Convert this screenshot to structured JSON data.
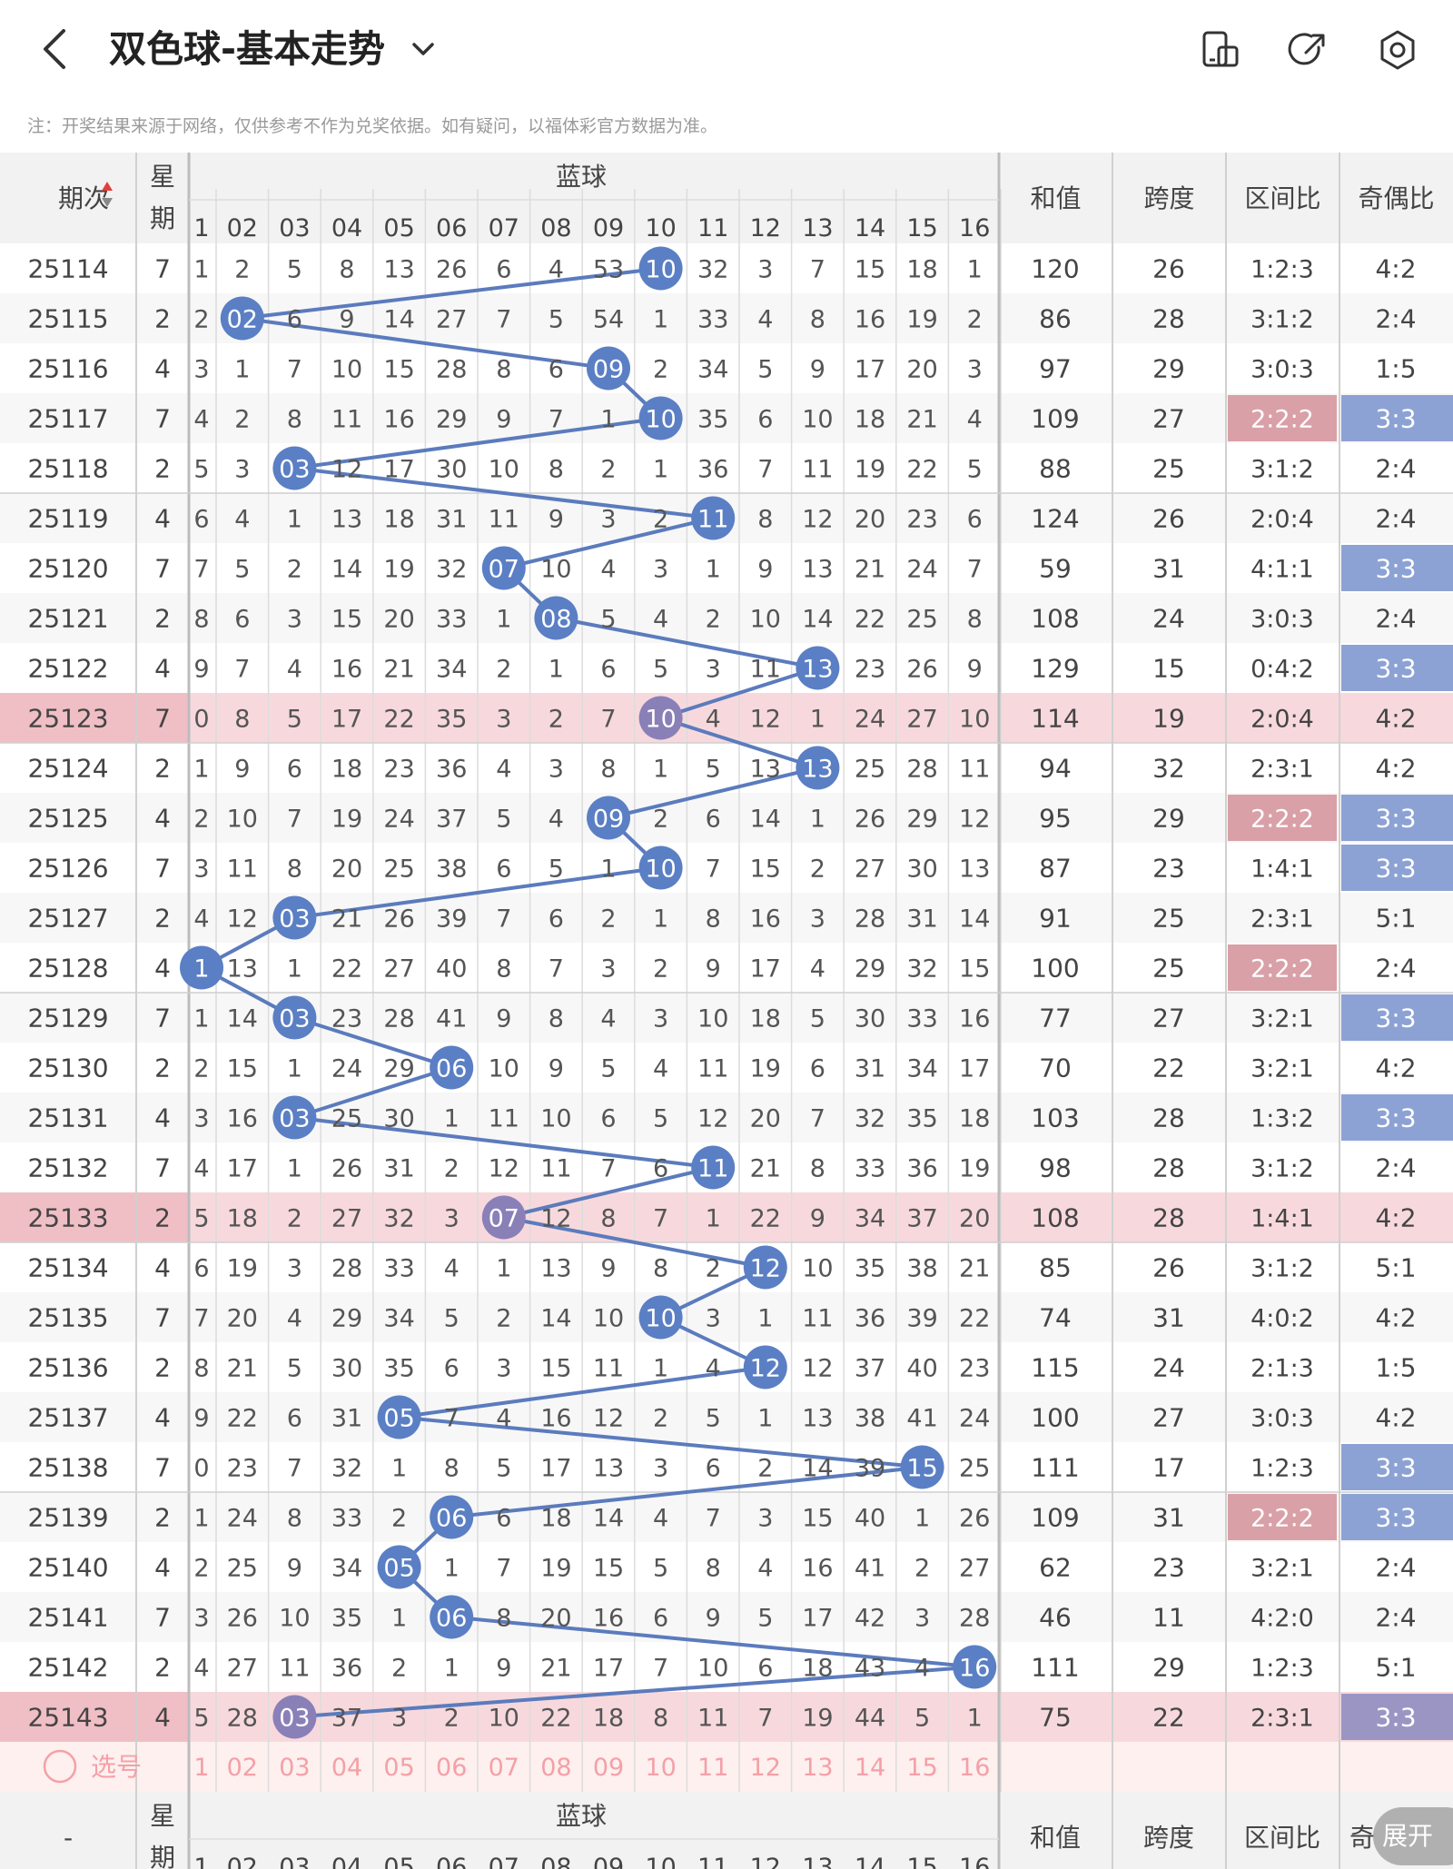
{
  "header": {
    "title": "双色球-基本走势"
  },
  "icons": {
    "back": "back-arrow-icon",
    "dropdown": "chevron-down-icon",
    "device": "phone-rotate-icon",
    "share": "share-icon",
    "settings": "settings-icon"
  },
  "notice": "注：开奖结果来源于网络，仅供参考不作为兑奖依据。如有疑问，以福体彩官方数据为准。",
  "table": {
    "col_period": "期次",
    "col_week": "星期",
    "col_blue": "蓝球",
    "col_sum": "和值",
    "col_span": "跨度",
    "col_zone": "区间比",
    "col_parity": "奇偶比",
    "blue_numbers": [
      "1",
      "02",
      "03",
      "04",
      "05",
      "06",
      "07",
      "08",
      "09",
      "10",
      "11",
      "12",
      "13",
      "14",
      "15",
      "16"
    ],
    "rows": [
      {
        "period": "25114",
        "week": "7",
        "blue": 10,
        "cells": [
          "1",
          "2",
          "5",
          "8",
          "13",
          "26",
          "6",
          "4",
          "53",
          "10",
          "32",
          "3",
          "7",
          "15",
          "18",
          "1"
        ],
        "sum": "120",
        "span": "26",
        "zone": "1:2:3",
        "parity": "4:2"
      },
      {
        "period": "25115",
        "week": "2",
        "blue": 2,
        "cells": [
          "2",
          "02",
          "6",
          "9",
          "14",
          "27",
          "7",
          "5",
          "54",
          "1",
          "33",
          "4",
          "8",
          "16",
          "19",
          "2"
        ],
        "sum": "86",
        "span": "28",
        "zone": "3:1:2",
        "parity": "2:4"
      },
      {
        "period": "25116",
        "week": "4",
        "blue": 9,
        "cells": [
          "3",
          "1",
          "7",
          "10",
          "15",
          "28",
          "8",
          "6",
          "09",
          "2",
          "34",
          "5",
          "9",
          "17",
          "20",
          "3"
        ],
        "sum": "97",
        "span": "29",
        "zone": "3:0:3",
        "parity": "1:5"
      },
      {
        "period": "25117",
        "week": "7",
        "blue": 10,
        "cells": [
          "4",
          "2",
          "8",
          "11",
          "16",
          "29",
          "9",
          "7",
          "1",
          "10",
          "35",
          "6",
          "10",
          "18",
          "21",
          "4"
        ],
        "sum": "109",
        "span": "27",
        "zone": "2:2:2",
        "parity": "3:3"
      },
      {
        "period": "25118",
        "week": "2",
        "blue": 3,
        "cells": [
          "5",
          "3",
          "03",
          "12",
          "17",
          "30",
          "10",
          "8",
          "2",
          "1",
          "36",
          "7",
          "11",
          "19",
          "22",
          "5"
        ],
        "sum": "88",
        "span": "25",
        "zone": "3:1:2",
        "parity": "2:4"
      },
      {
        "period": "25119",
        "week": "4",
        "blue": 11,
        "cells": [
          "6",
          "4",
          "1",
          "13",
          "18",
          "31",
          "11",
          "9",
          "3",
          "2",
          "11",
          "8",
          "12",
          "20",
          "23",
          "6"
        ],
        "sum": "124",
        "span": "26",
        "zone": "2:0:4",
        "parity": "2:4"
      },
      {
        "period": "25120",
        "week": "7",
        "blue": 7,
        "cells": [
          "7",
          "5",
          "2",
          "14",
          "19",
          "32",
          "07",
          "10",
          "4",
          "3",
          "1",
          "9",
          "13",
          "21",
          "24",
          "7"
        ],
        "sum": "59",
        "span": "31",
        "zone": "4:1:1",
        "parity": "3:3"
      },
      {
        "period": "25121",
        "week": "2",
        "blue": 8,
        "cells": [
          "8",
          "6",
          "3",
          "15",
          "20",
          "33",
          "1",
          "08",
          "5",
          "4",
          "2",
          "10",
          "14",
          "22",
          "25",
          "8"
        ],
        "sum": "108",
        "span": "24",
        "zone": "3:0:3",
        "parity": "2:4"
      },
      {
        "period": "25122",
        "week": "4",
        "blue": 13,
        "cells": [
          "9",
          "7",
          "4",
          "16",
          "21",
          "34",
          "2",
          "1",
          "6",
          "5",
          "3",
          "11",
          "13",
          "23",
          "26",
          "9"
        ],
        "sum": "129",
        "span": "15",
        "zone": "0:4:2",
        "parity": "3:3"
      },
      {
        "period": "25123",
        "week": "7",
        "blue": 10,
        "cells": [
          "0",
          "8",
          "5",
          "17",
          "22",
          "35",
          "3",
          "2",
          "7",
          "10",
          "4",
          "12",
          "1",
          "24",
          "27",
          "10"
        ],
        "sum": "114",
        "span": "19",
        "zone": "2:0:4",
        "parity": "4:2"
      },
      {
        "period": "25124",
        "week": "2",
        "blue": 13,
        "cells": [
          "1",
          "9",
          "6",
          "18",
          "23",
          "36",
          "4",
          "3",
          "8",
          "1",
          "5",
          "13",
          "13",
          "25",
          "28",
          "11"
        ],
        "sum": "94",
        "span": "32",
        "zone": "2:3:1",
        "parity": "4:2"
      },
      {
        "period": "25125",
        "week": "4",
        "blue": 9,
        "cells": [
          "2",
          "10",
          "7",
          "19",
          "24",
          "37",
          "5",
          "4",
          "09",
          "2",
          "6",
          "14",
          "1",
          "26",
          "29",
          "12"
        ],
        "sum": "95",
        "span": "29",
        "zone": "2:2:2",
        "parity": "3:3"
      },
      {
        "period": "25126",
        "week": "7",
        "blue": 10,
        "cells": [
          "3",
          "11",
          "8",
          "20",
          "25",
          "38",
          "6",
          "5",
          "1",
          "10",
          "7",
          "15",
          "2",
          "27",
          "30",
          "13"
        ],
        "sum": "87",
        "span": "23",
        "zone": "1:4:1",
        "parity": "3:3"
      },
      {
        "period": "25127",
        "week": "2",
        "blue": 3,
        "cells": [
          "4",
          "12",
          "03",
          "21",
          "26",
          "39",
          "7",
          "6",
          "2",
          "1",
          "8",
          "16",
          "3",
          "28",
          "31",
          "14"
        ],
        "sum": "91",
        "span": "25",
        "zone": "2:3:1",
        "parity": "5:1"
      },
      {
        "period": "25128",
        "week": "4",
        "blue": 1,
        "cells": [
          "1",
          "13",
          "1",
          "22",
          "27",
          "40",
          "8",
          "7",
          "3",
          "2",
          "9",
          "17",
          "4",
          "29",
          "32",
          "15"
        ],
        "sum": "100",
        "span": "25",
        "zone": "2:2:2",
        "parity": "2:4"
      },
      {
        "period": "25129",
        "week": "7",
        "blue": 3,
        "cells": [
          "1",
          "14",
          "03",
          "23",
          "28",
          "41",
          "9",
          "8",
          "4",
          "3",
          "10",
          "18",
          "5",
          "30",
          "33",
          "16"
        ],
        "sum": "77",
        "span": "27",
        "zone": "3:2:1",
        "parity": "3:3"
      },
      {
        "period": "25130",
        "week": "2",
        "blue": 6,
        "cells": [
          "2",
          "15",
          "1",
          "24",
          "29",
          "06",
          "10",
          "9",
          "5",
          "4",
          "11",
          "19",
          "6",
          "31",
          "34",
          "17"
        ],
        "sum": "70",
        "span": "22",
        "zone": "3:2:1",
        "parity": "4:2"
      },
      {
        "period": "25131",
        "week": "4",
        "blue": 3,
        "cells": [
          "3",
          "16",
          "03",
          "25",
          "30",
          "1",
          "11",
          "10",
          "6",
          "5",
          "12",
          "20",
          "7",
          "32",
          "35",
          "18"
        ],
        "sum": "103",
        "span": "28",
        "zone": "1:3:2",
        "parity": "3:3"
      },
      {
        "period": "25132",
        "week": "7",
        "blue": 11,
        "cells": [
          "4",
          "17",
          "1",
          "26",
          "31",
          "2",
          "12",
          "11",
          "7",
          "6",
          "11",
          "21",
          "8",
          "33",
          "36",
          "19"
        ],
        "sum": "98",
        "span": "28",
        "zone": "3:1:2",
        "parity": "2:4"
      },
      {
        "period": "25133",
        "week": "2",
        "blue": 7,
        "cells": [
          "5",
          "18",
          "2",
          "27",
          "32",
          "3",
          "07",
          "12",
          "8",
          "7",
          "1",
          "22",
          "9",
          "34",
          "37",
          "20"
        ],
        "sum": "108",
        "span": "28",
        "zone": "1:4:1",
        "parity": "4:2"
      },
      {
        "period": "25134",
        "week": "4",
        "blue": 12,
        "cells": [
          "6",
          "19",
          "3",
          "28",
          "33",
          "4",
          "1",
          "13",
          "9",
          "8",
          "2",
          "12",
          "10",
          "35",
          "38",
          "21"
        ],
        "sum": "85",
        "span": "26",
        "zone": "3:1:2",
        "parity": "5:1"
      },
      {
        "period": "25135",
        "week": "7",
        "blue": 10,
        "cells": [
          "7",
          "20",
          "4",
          "29",
          "34",
          "5",
          "2",
          "14",
          "10",
          "10",
          "3",
          "1",
          "11",
          "36",
          "39",
          "22"
        ],
        "sum": "74",
        "span": "31",
        "zone": "4:0:2",
        "parity": "4:2"
      },
      {
        "period": "25136",
        "week": "2",
        "blue": 12,
        "cells": [
          "8",
          "21",
          "5",
          "30",
          "35",
          "6",
          "3",
          "15",
          "11",
          "1",
          "4",
          "12",
          "12",
          "37",
          "40",
          "23"
        ],
        "sum": "115",
        "span": "24",
        "zone": "2:1:3",
        "parity": "1:5"
      },
      {
        "period": "25137",
        "week": "4",
        "blue": 5,
        "cells": [
          "9",
          "22",
          "6",
          "31",
          "05",
          "7",
          "4",
          "16",
          "12",
          "2",
          "5",
          "1",
          "13",
          "38",
          "41",
          "24"
        ],
        "sum": "100",
        "span": "27",
        "zone": "3:0:3",
        "parity": "4:2"
      },
      {
        "period": "25138",
        "week": "7",
        "blue": 15,
        "cells": [
          "0",
          "23",
          "7",
          "32",
          "1",
          "8",
          "5",
          "17",
          "13",
          "3",
          "6",
          "2",
          "14",
          "39",
          "15",
          "25"
        ],
        "sum": "111",
        "span": "17",
        "zone": "1:2:3",
        "parity": "3:3"
      },
      {
        "period": "25139",
        "week": "2",
        "blue": 6,
        "cells": [
          "1",
          "24",
          "8",
          "33",
          "2",
          "06",
          "6",
          "18",
          "14",
          "4",
          "7",
          "3",
          "15",
          "40",
          "1",
          "26"
        ],
        "sum": "109",
        "span": "31",
        "zone": "2:2:2",
        "parity": "3:3"
      },
      {
        "period": "25140",
        "week": "4",
        "blue": 5,
        "cells": [
          "2",
          "25",
          "9",
          "34",
          "05",
          "1",
          "7",
          "19",
          "15",
          "5",
          "8",
          "4",
          "16",
          "41",
          "2",
          "27"
        ],
        "sum": "62",
        "span": "23",
        "zone": "3:2:1",
        "parity": "2:4"
      },
      {
        "period": "25141",
        "week": "7",
        "blue": 6,
        "cells": [
          "3",
          "26",
          "10",
          "35",
          "1",
          "06",
          "8",
          "20",
          "16",
          "6",
          "9",
          "5",
          "17",
          "42",
          "3",
          "28"
        ],
        "sum": "46",
        "span": "11",
        "zone": "4:2:0",
        "parity": "2:4"
      },
      {
        "period": "25142",
        "week": "2",
        "blue": 16,
        "cells": [
          "4",
          "27",
          "11",
          "36",
          "2",
          "1",
          "9",
          "21",
          "17",
          "7",
          "10",
          "6",
          "18",
          "43",
          "4",
          "16"
        ],
        "sum": "111",
        "span": "29",
        "zone": "1:2:3",
        "parity": "5:1"
      },
      {
        "period": "25143",
        "week": "4",
        "blue": 3,
        "cells": [
          "5",
          "28",
          "03",
          "37",
          "3",
          "2",
          "10",
          "22",
          "18",
          "8",
          "11",
          "7",
          "19",
          "44",
          "5",
          "1"
        ],
        "sum": "75",
        "span": "22",
        "zone": "2:3:1",
        "parity": "3:3"
      }
    ],
    "select_label": "选号",
    "footer_period": "-",
    "footer_parity": "奇"
  },
  "expand_label": "展开",
  "colors": {
    "ball": "#5b7fc4",
    "ball_highlight": "#8a80b8",
    "line": "#5b7bbd",
    "highlight_row": "#f7d9dd",
    "zone_highlight": "#d9a0a8",
    "parity_highlight": "#8da2d4",
    "select_text": "#f4a0a8"
  }
}
